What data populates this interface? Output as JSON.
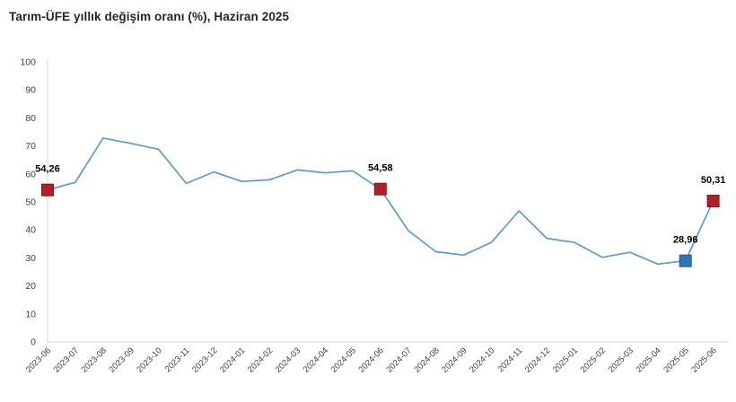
{
  "title": "Tarım-ÜFE yıllık değişim oranı (%), Haziran 2025",
  "colors": {
    "line": "#5B9BD5",
    "marker_red": "#B02026",
    "marker_red_border": "#871418",
    "marker_blue": "#2E75B6",
    "marker_blue_border": "#1D5B93",
    "axis_line": "#D9D9D9",
    "tick_text": "#3F3F3F",
    "title_text": "#20252E",
    "point_label_text": "#000000"
  },
  "chart_data": {
    "type": "line",
    "title": "Tarım-ÜFE yıllık değişim oranı (%), Haziran 2025",
    "x": [
      "2023-06",
      "2023-07",
      "2023-08",
      "2023-09",
      "2023-10",
      "2023-11",
      "2023-12",
      "2024-01",
      "2024-02",
      "2024-03",
      "2024-04",
      "2024-05",
      "2024-06",
      "2024-07",
      "2024-08",
      "2024-09",
      "2024-10",
      "2024-11",
      "2024-12",
      "2025-01",
      "2025-02",
      "2025-03",
      "2025-04",
      "2025-05",
      "2025-06"
    ],
    "series": [
      {
        "name": "Tarım-ÜFE yıllık değişim oranı (%)",
        "values": [
          54.26,
          57.0,
          72.8,
          70.9,
          68.8,
          56.6,
          60.7,
          57.3,
          57.9,
          61.4,
          60.4,
          61.1,
          54.58,
          39.8,
          32.2,
          31.0,
          35.5,
          46.8,
          37.0,
          35.5,
          30.2,
          32.0,
          27.8,
          28.96,
          50.31
        ]
      }
    ],
    "annotations": [
      {
        "x": "2023-06",
        "value": 54.26,
        "label": "54,26",
        "marker": "square",
        "color": "red"
      },
      {
        "x": "2024-06",
        "value": 54.58,
        "label": "54,58",
        "marker": "square",
        "color": "red"
      },
      {
        "x": "2025-05",
        "value": 28.96,
        "label": "28,96",
        "marker": "square",
        "color": "blue"
      },
      {
        "x": "2025-06",
        "value": 50.31,
        "label": "50,31",
        "marker": "square",
        "color": "red"
      }
    ],
    "xlabel": "",
    "ylabel": "",
    "ylim": [
      0,
      100
    ],
    "ytick_step": 10,
    "yticks": [
      0,
      10,
      20,
      30,
      40,
      50,
      60,
      70,
      80,
      90,
      100
    ],
    "grid": false,
    "legend": false,
    "x_label_rotation": -45
  }
}
